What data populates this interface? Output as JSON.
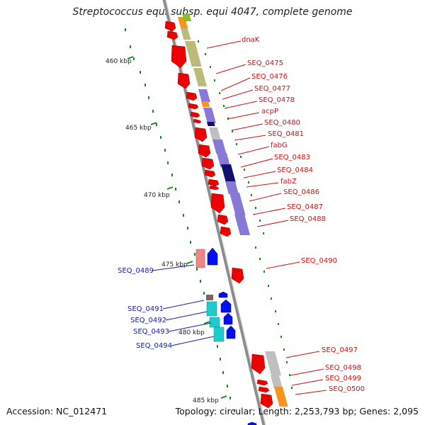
{
  "title": "Streptococcus equi subsp. equi 4047, complete genome",
  "footer": {
    "accession": "Accession: NC_012471",
    "topology": "Topology: circular; Length: 2,253,793 bp; Genes: 2,095"
  },
  "scale_labels": [
    "460 kbp",
    "465 kbp",
    "470 kbp",
    "475 kbp",
    "480 kbp",
    "485 kbp"
  ],
  "genes_forward": [
    "dnaK",
    "SEQ_0475",
    "SEQ_0476",
    "SEQ_0477",
    "SEQ_0478",
    "acpP",
    "SEQ_0480",
    "SEQ_0481",
    "fabG",
    "SEQ_0483",
    "SEQ_0484",
    "fabZ",
    "SEQ_0486",
    "SEQ_0487",
    "SEQ_0488",
    "SEQ_0490",
    "SEQ_0497",
    "SEQ_0498",
    "SEQ_0499",
    "SEQ_0500"
  ],
  "genes_reverse": [
    "SEQ_0489",
    "SEQ_0491",
    "SEQ_0492",
    "SEQ_0493",
    "SEQ_0494"
  ],
  "colors": {
    "forward_label": "#d01010",
    "reverse_label": "#1020b0",
    "gene_red": "#ee0000",
    "gene_blue": "#0010ee",
    "backbone": "#8c8c8c",
    "ticks": "#1a8a1a",
    "olive": "#bdbb7a",
    "purple": "#8878d8",
    "navy": "#101070",
    "orange": "#f7941d",
    "gray": "#bfbfbf",
    "cyan": "#1ecccc",
    "pink": "#ee8888",
    "brown": "#806060"
  }
}
